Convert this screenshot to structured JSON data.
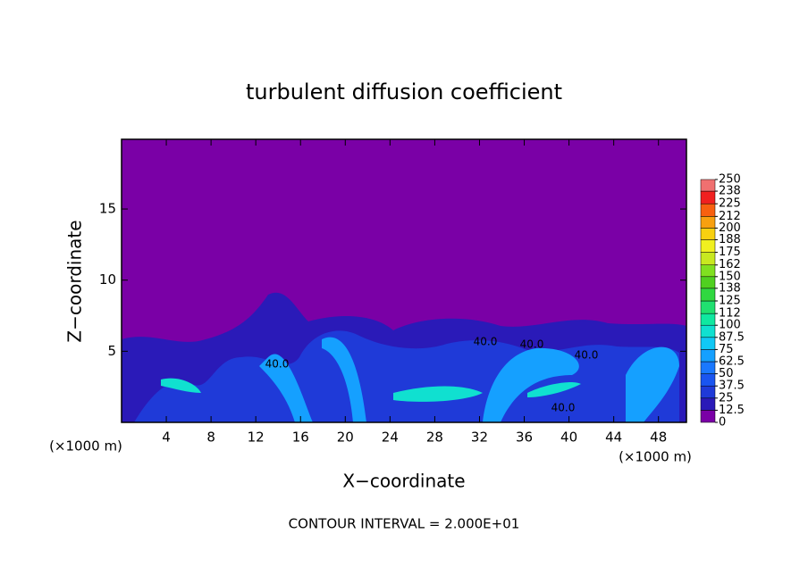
{
  "chart_data": {
    "type": "contour",
    "title": "turbulent diffusion coefficient",
    "x_label": "X−coordinate",
    "y_label": "Z−coordinate",
    "x_unit": "(×1000 m)",
    "y_unit": "(×1000 m)",
    "footer": "CONTOUR INTERVAL = 2.000E+01",
    "contour_labels": [
      "40.0",
      "40.0",
      "40.0",
      "40.0",
      "40.0"
    ],
    "xlim": [
      0,
      50.5
    ],
    "ylim": [
      0,
      19.9
    ],
    "xticks": [
      4,
      8,
      12,
      16,
      20,
      24,
      28,
      32,
      36,
      40,
      44,
      48
    ],
    "yticks": [
      5,
      10,
      15
    ],
    "colorbar": {
      "levels": [
        0,
        12.5,
        25,
        37.5,
        50,
        62.5,
        75,
        87.5,
        100,
        112,
        125,
        138,
        150,
        162,
        175,
        188,
        200,
        212,
        225,
        238,
        250
      ],
      "colors": [
        "#7a00a6",
        "#2a1ab8",
        "#1f3ad8",
        "#1a55f0",
        "#1a78ff",
        "#15a0ff",
        "#10c8f5",
        "#10e0d0",
        "#10e8a0",
        "#20e070",
        "#30d840",
        "#50d020",
        "#80e020",
        "#c8e820",
        "#f0f020",
        "#f8d010",
        "#f8a010",
        "#f86010",
        "#f02020",
        "#f07070"
      ]
    }
  }
}
